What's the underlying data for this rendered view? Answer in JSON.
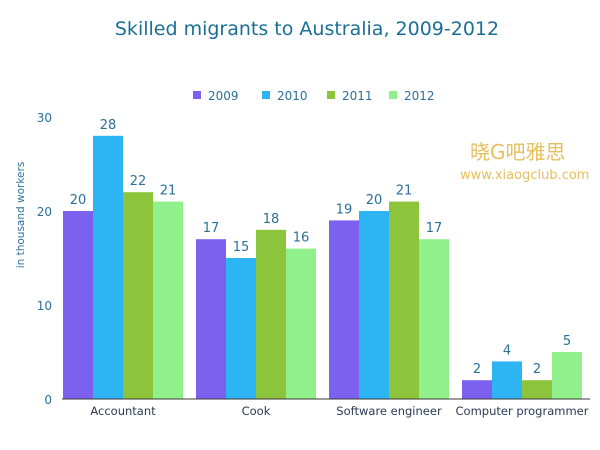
{
  "chart_data": {
    "type": "bar",
    "title": "Skilled migrants to Australia, 2009-2012",
    "ylabel": "in thousand workers",
    "xlabel": "",
    "ylim": [
      0,
      30
    ],
    "yticks": [
      0,
      10,
      20,
      30
    ],
    "grid": false,
    "legend_position": "top",
    "categories": [
      "Accountant",
      "Cook",
      "Software engineer",
      "Computer programmer"
    ],
    "series": [
      {
        "name": "2009",
        "color": "#7b61ee",
        "values": [
          20,
          17,
          19,
          2
        ]
      },
      {
        "name": "2010",
        "color": "#2db4f2",
        "values": [
          28,
          15,
          20,
          4
        ]
      },
      {
        "name": "2011",
        "color": "#8cc43c",
        "values": [
          22,
          18,
          21,
          2
        ]
      },
      {
        "name": "2012",
        "color": "#90f08c",
        "values": [
          21,
          16,
          17,
          5
        ]
      }
    ]
  },
  "watermark": {
    "line1": "晓G吧雅思",
    "line2": "www.xiaogclub.com"
  }
}
